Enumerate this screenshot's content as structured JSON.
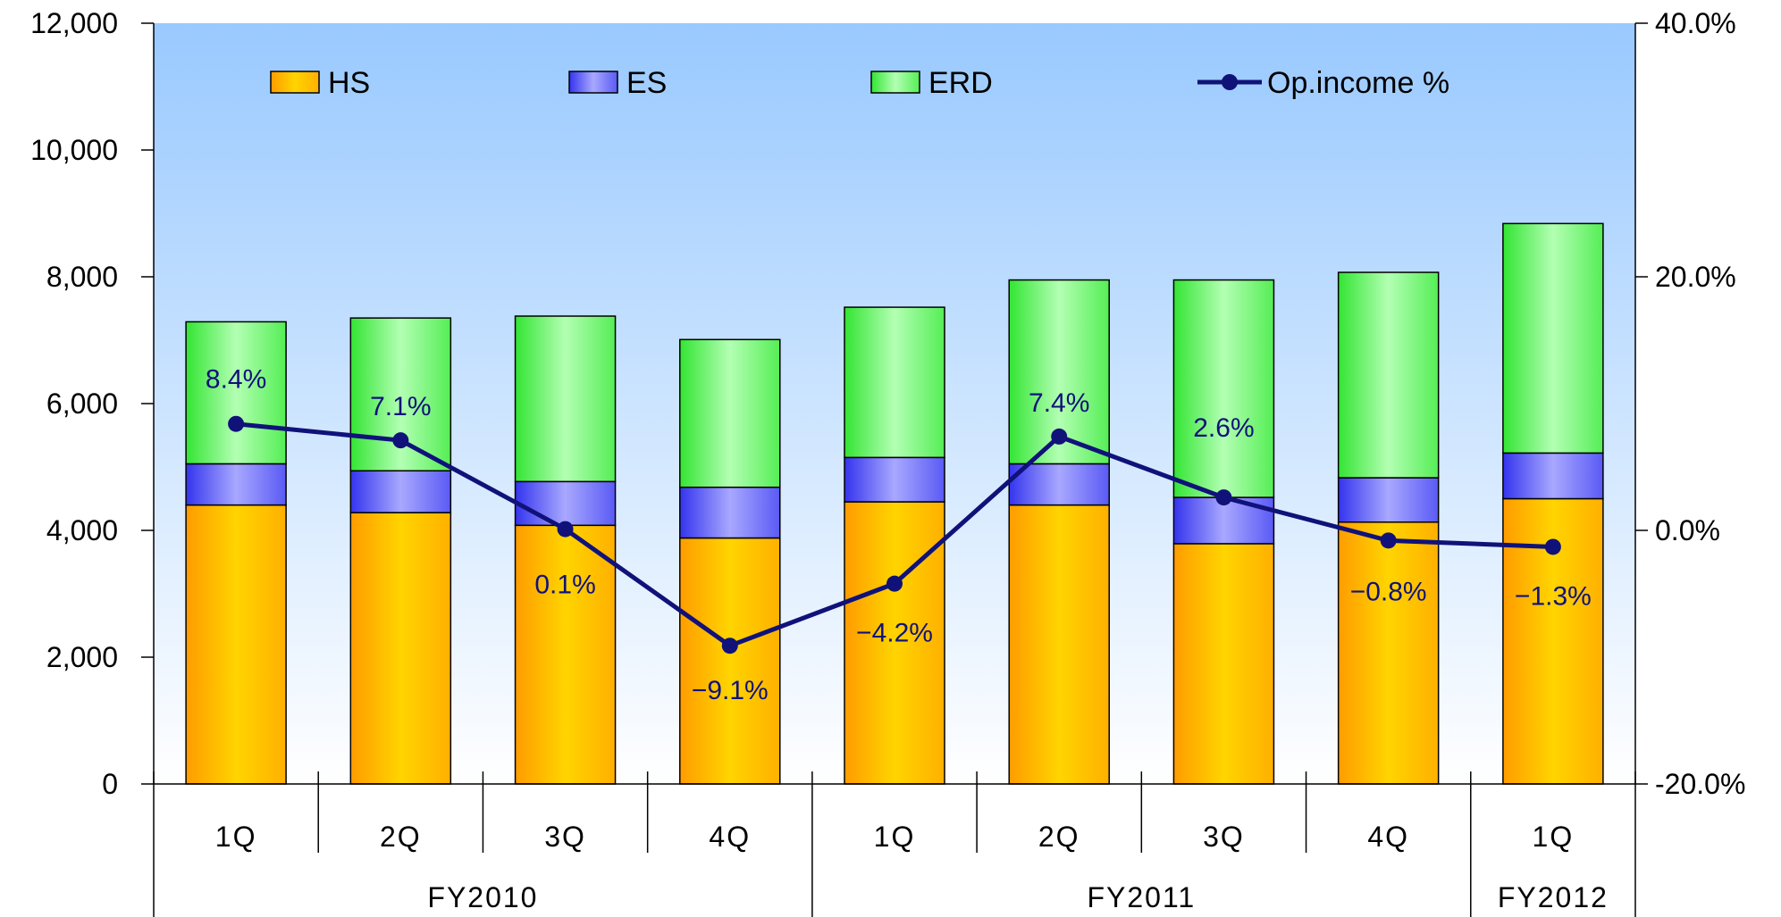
{
  "chart_data": {
    "type": "bar",
    "stacked": true,
    "categories": [
      "1Q",
      "2Q",
      "3Q",
      "4Q",
      "1Q",
      "2Q",
      "3Q",
      "4Q",
      "1Q"
    ],
    "groups": [
      {
        "label": "FY2010",
        "count": 4
      },
      {
        "label": "FY2011",
        "count": 4
      },
      {
        "label": "FY2012",
        "count": 1
      }
    ],
    "series": [
      {
        "name": "HS",
        "color": "#ffb800",
        "values": [
          4400,
          4280,
          4080,
          3880,
          4450,
          4400,
          3790,
          4130,
          4500
        ]
      },
      {
        "name": "ES",
        "color": "#6b6bff",
        "values": [
          650,
          660,
          690,
          800,
          700,
          650,
          730,
          700,
          720
        ]
      },
      {
        "name": "ERD",
        "color": "#66ee66",
        "values": [
          2240,
          2410,
          2610,
          2330,
          2370,
          2900,
          3430,
          3240,
          3620
        ]
      }
    ],
    "line_series": {
      "name": "Op.income %",
      "color": "#10127a",
      "axis": "right",
      "values": [
        8.4,
        7.1,
        0.1,
        -9.1,
        -4.2,
        7.4,
        2.6,
        -0.8,
        -1.3
      ],
      "labels": [
        "8.4%",
        "7.1%",
        "0.1%",
        "−9.1%",
        "−4.2%",
        "7.4%",
        "2.6%",
        "−0.8%",
        "−1.3%"
      ]
    },
    "y_left": {
      "min": 0,
      "max": 12000,
      "ticks": [
        "0",
        "2,000",
        "4,000",
        "6,000",
        "8,000",
        "10,000",
        "12,000"
      ]
    },
    "y_right": {
      "min": -20,
      "max": 40,
      "ticks": [
        "-20.0%",
        "0.0%",
        "20.0%",
        "40.0%"
      ]
    },
    "legend_position": "top",
    "title": "",
    "xlabel": "",
    "ylabel": ""
  }
}
